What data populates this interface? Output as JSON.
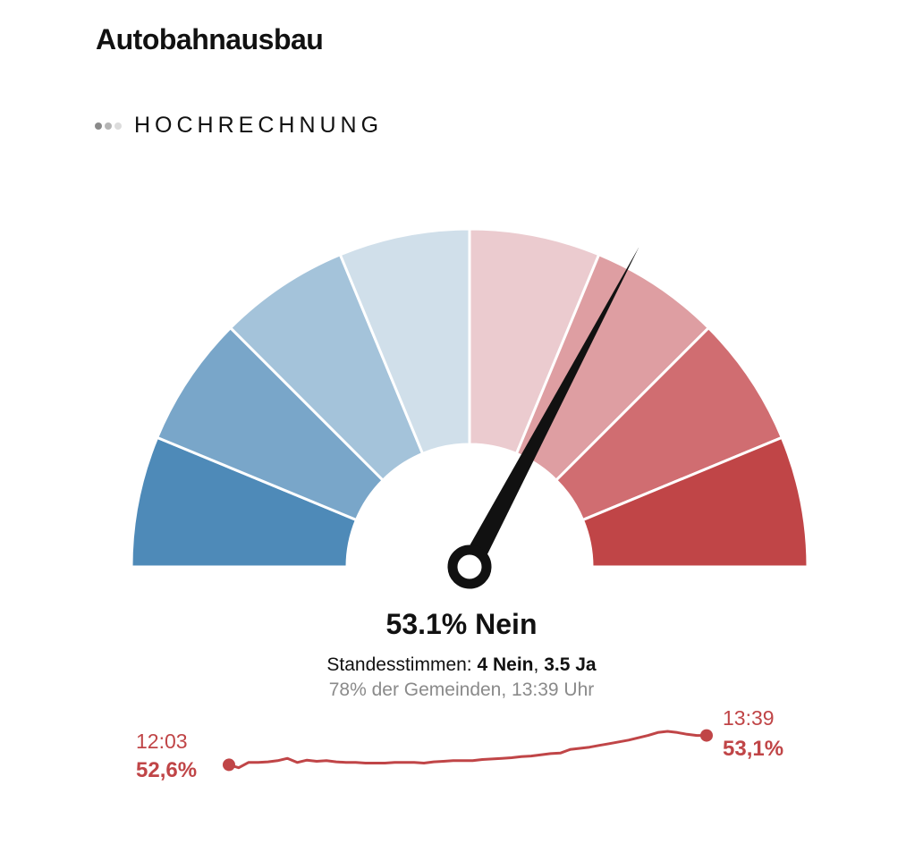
{
  "title": "Autobahnausbau",
  "status": {
    "label": "HOCHRECHNUNG",
    "dot_colors": [
      "#8a8a8a",
      "#b5b5b5",
      "#dcdcdc"
    ]
  },
  "gauge": {
    "value_percent_nein": 53.1,
    "segment_colors": [
      "#4e8ab8",
      "#79a6c9",
      "#a4c3da",
      "#d0dfea",
      "#ebcbcf",
      "#de9ea2",
      "#d06d71",
      "#c04547"
    ]
  },
  "result": {
    "headline": "53.1% Nein",
    "votes_prefix": "Standesstimmen: ",
    "votes_nein": "4 Nein",
    "votes_sep": ", ",
    "votes_ja": "3.5 Ja",
    "subinfo": "78% der Gemeinden, 13:39 Uhr"
  },
  "trend": {
    "color": "#c04547",
    "start_time": "12:03",
    "start_value": "52,6%",
    "end_time": "13:39",
    "end_value": "53,1%",
    "values": [
      52.6,
      52.55,
      52.64,
      52.64,
      52.65,
      52.67,
      52.71,
      52.64,
      52.68,
      52.66,
      52.67,
      52.65,
      52.64,
      52.64,
      52.63,
      52.63,
      52.63,
      52.64,
      52.64,
      52.64,
      52.63,
      52.65,
      52.66,
      52.67,
      52.67,
      52.67,
      52.69,
      52.7,
      52.71,
      52.72,
      52.74,
      52.75,
      52.77,
      52.79,
      52.8,
      52.86,
      52.88,
      52.9,
      52.93,
      52.96,
      52.99,
      53.02,
      53.06,
      53.1,
      53.15,
      53.17,
      53.15,
      53.12,
      53.1,
      53.1
    ]
  }
}
